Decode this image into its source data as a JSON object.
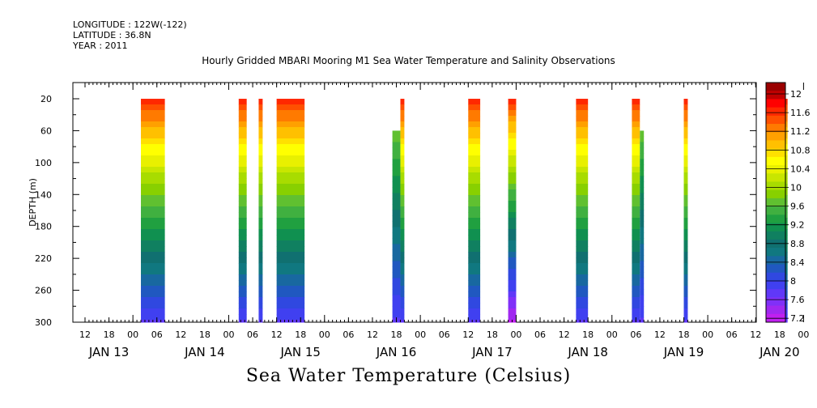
{
  "header": {
    "longitude": "LONGITUDE : 122W(-122)",
    "latitude": "LATITUDE : 36.8N",
    "year": "YEAR : 2011"
  },
  "title": "Hourly Gridded MBARI Mooring M1 Sea Water Temperature and Salinity Observations",
  "footer_label": "Sea Water Temperature (Celsius)",
  "chart_data": {
    "type": "heatmap",
    "ylabel": "DEPTH (m)",
    "y_reversed": true,
    "ylim": [
      300,
      5
    ],
    "y_ticks": [
      20,
      60,
      100,
      140,
      180,
      220,
      260,
      300
    ],
    "x_hour_ticks": [
      "12",
      "18",
      "00",
      "06",
      "12",
      "18",
      "00",
      "06",
      "12",
      "18",
      "00",
      "06",
      "12",
      "18",
      "00",
      "06",
      "12",
      "18",
      "00",
      "06",
      "12",
      "18",
      "00",
      "06",
      "12",
      "18",
      "00",
      "06",
      "12",
      "18",
      "00",
      "06"
    ],
    "x_day_labels": [
      "JAN 13",
      "JAN 14",
      "JAN 15",
      "JAN 16",
      "JAN 17",
      "JAN 18",
      "JAN 19",
      "JAN 20"
    ],
    "xlim_hours": [
      0,
      174
    ],
    "colorbar": {
      "ticks": [
        "12",
        "11.6",
        "11.2",
        "10.8",
        "10.4",
        "10",
        "9.6",
        "9.2",
        "8.8",
        "8.4",
        "8",
        "7.6",
        "7.2"
      ],
      "colors": [
        "#9a0000",
        "#c00000",
        "#ff0000",
        "#ff2800",
        "#ff5000",
        "#ff7a00",
        "#ffa000",
        "#ffc000",
        "#ffe000",
        "#ffff00",
        "#e8f000",
        "#c8e600",
        "#a8dc00",
        "#88d000",
        "#60c030",
        "#40b040",
        "#20a040",
        "#109050",
        "#108060",
        "#107070",
        "#107880",
        "#1868a0",
        "#2058c0",
        "#3048e0",
        "#4040f0",
        "#6038f8",
        "#8030f8",
        "#a028f0",
        "#c020f0"
      ],
      "range": [
        7.2,
        12.2
      ]
    },
    "segments": [
      {
        "start_hour": 14,
        "end_hour": 20,
        "top_depth": 20,
        "surface_temp": 11.6,
        "bottom_temp": 7.8
      },
      {
        "start_hour": 38.5,
        "end_hour": 40.5,
        "top_depth": 20,
        "surface_temp": 11.6,
        "bottom_temp": 7.8
      },
      {
        "start_hour": 43.5,
        "end_hour": 44.5,
        "top_depth": 20,
        "surface_temp": 11.6,
        "bottom_temp": 7.8
      },
      {
        "start_hour": 48,
        "end_hour": 55,
        "top_depth": 20,
        "surface_temp": 11.6,
        "bottom_temp": 7.8
      },
      {
        "start_hour": 77,
        "end_hour": 79,
        "top_depth": 60,
        "surface_temp": 10.2,
        "bottom_temp": 7.8
      },
      {
        "start_hour": 79,
        "end_hour": 80,
        "top_depth": 20,
        "surface_temp": 11.6,
        "bottom_temp": 7.8
      },
      {
        "start_hour": 96,
        "end_hour": 99,
        "top_depth": 20,
        "surface_temp": 11.6,
        "bottom_temp": 7.8
      },
      {
        "start_hour": 106,
        "end_hour": 108,
        "top_depth": 20,
        "surface_temp": 11.6,
        "bottom_temp": 7.3
      },
      {
        "start_hour": 123,
        "end_hour": 126,
        "top_depth": 20,
        "surface_temp": 11.6,
        "bottom_temp": 7.8
      },
      {
        "start_hour": 137,
        "end_hour": 139,
        "top_depth": 20,
        "surface_temp": 11.6,
        "bottom_temp": 7.8
      },
      {
        "start_hour": 139,
        "end_hour": 140,
        "top_depth": 60,
        "surface_temp": 10.2,
        "bottom_temp": 7.8
      },
      {
        "start_hour": 150,
        "end_hour": 151,
        "top_depth": 20,
        "surface_temp": 11.6,
        "bottom_temp": 7.8
      },
      {
        "start_hour": 174,
        "end_hour": 176,
        "top_depth": 20,
        "surface_temp": 11.6,
        "bottom_temp": 7.8
      }
    ]
  }
}
